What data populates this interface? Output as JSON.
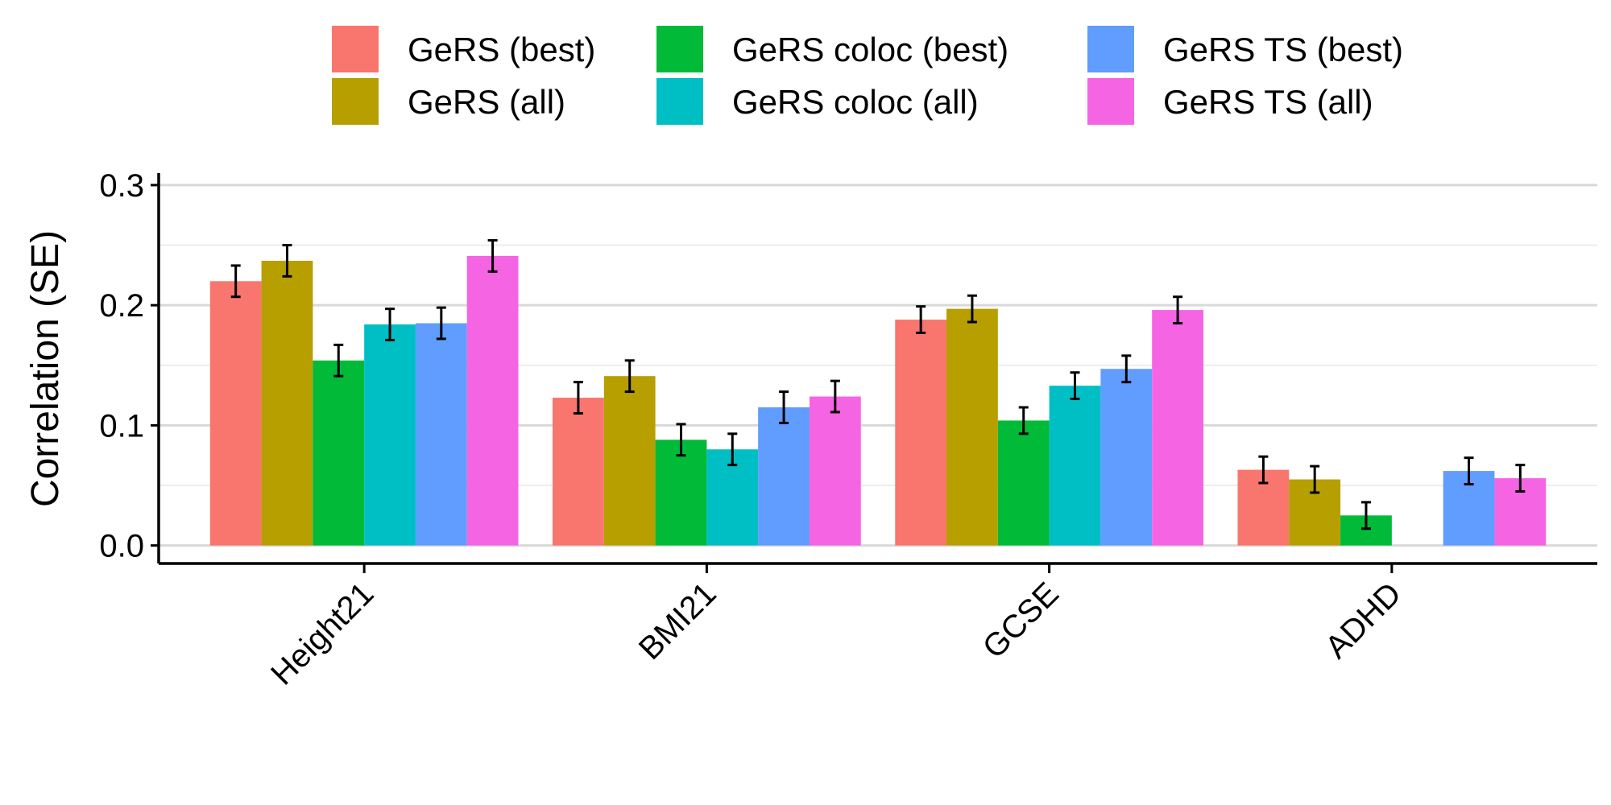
{
  "chart_data": {
    "type": "bar",
    "xlabel": "",
    "ylabel": "Correlation (SE)",
    "ylim": [
      -0.015,
      0.31
    ],
    "yticks": [
      0.0,
      0.1,
      0.2,
      0.3
    ],
    "ytick_labels": [
      "0.0",
      "0.1",
      "0.2",
      "0.3"
    ],
    "grid": true,
    "legend_position": "top",
    "categories": [
      "Height21",
      "BMI21",
      "GCSE",
      "ADHD"
    ],
    "series": [
      {
        "name": "GeRS (best)",
        "color": "#F8766D",
        "values": [
          0.22,
          0.123,
          0.188,
          0.063
        ],
        "se": [
          0.013,
          0.013,
          0.011,
          0.011
        ]
      },
      {
        "name": "GeRS (all)",
        "color": "#B79F00",
        "values": [
          0.237,
          0.141,
          0.197,
          0.055
        ],
        "se": [
          0.013,
          0.013,
          0.011,
          0.011
        ]
      },
      {
        "name": "GeRS coloc (best)",
        "color": "#00BA38",
        "values": [
          0.154,
          0.088,
          0.104,
          0.025
        ],
        "se": [
          0.013,
          0.013,
          0.011,
          0.011
        ]
      },
      {
        "name": "GeRS coloc (all)",
        "color": "#00BFC4",
        "values": [
          0.184,
          0.08,
          0.133,
          null
        ],
        "se": [
          0.013,
          0.013,
          0.011,
          null
        ]
      },
      {
        "name": "GeRS TS (best)",
        "color": "#619CFF",
        "values": [
          0.185,
          0.115,
          0.147,
          0.062
        ],
        "se": [
          0.013,
          0.013,
          0.011,
          0.011
        ]
      },
      {
        "name": "GeRS TS (all)",
        "color": "#F564E3",
        "values": [
          0.241,
          0.124,
          0.196,
          0.056
        ],
        "se": [
          0.013,
          0.013,
          0.011,
          0.011
        ]
      }
    ]
  }
}
